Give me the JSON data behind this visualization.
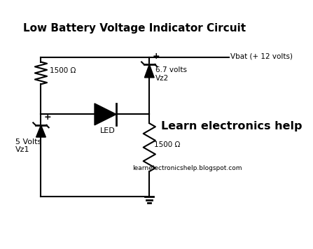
{
  "title": "Low Battery Voltage Indicator Circuit",
  "title_fontsize": 11,
  "bg_color": "#ffffff",
  "line_color": "#000000",
  "text_color": "#000000",
  "brand_text": "Learn electronics help",
  "website_text": "learnelectronicshelp.blogspot.com",
  "vbat_label": "Vbat (+ 12 volts)",
  "resistor1_label": "1500 Ω",
  "resistor2_label": "1500 Ω",
  "zener1_label": "5 Volts\nVz1",
  "zener2_label": "6.7 volts\nVz2",
  "led_label": "LED",
  "plus_label": "+"
}
